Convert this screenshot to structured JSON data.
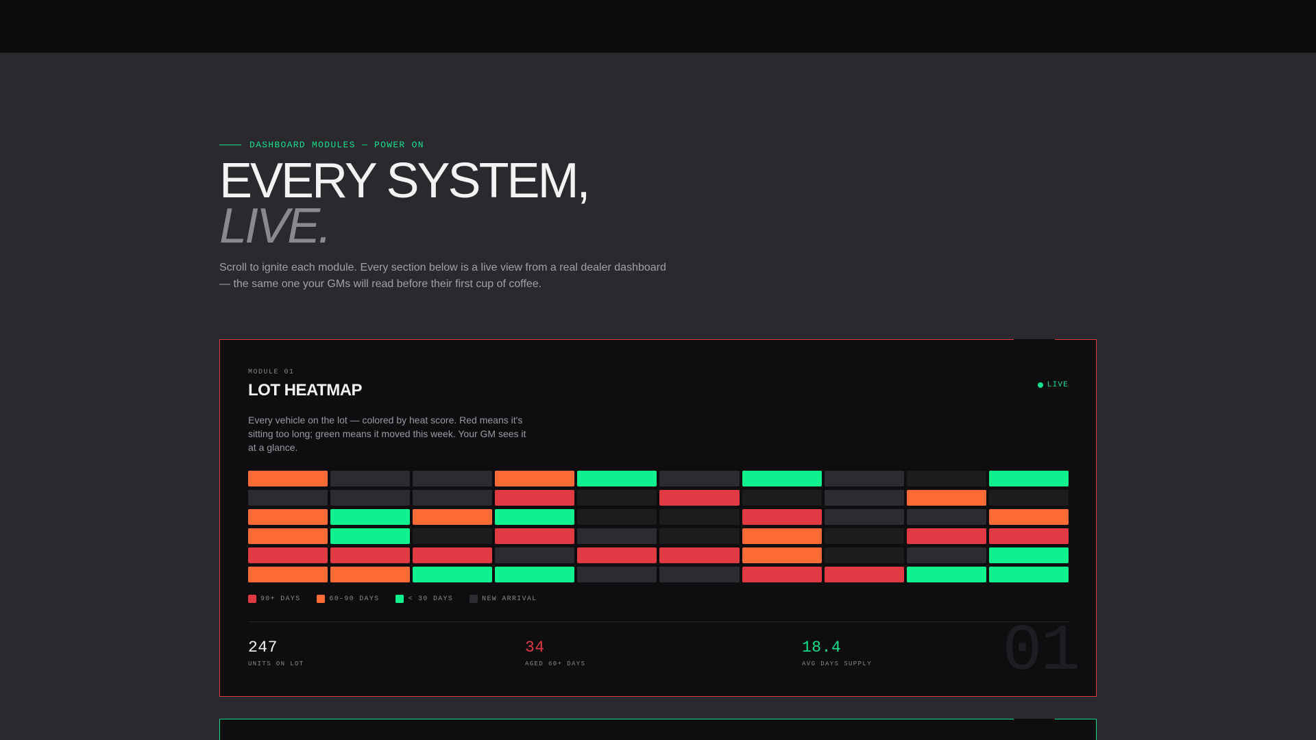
{
  "hero": {
    "eyebrow": "DASHBOARD MODULES — POWER ON",
    "title_line1": "EVERY SYSTEM,",
    "title_line2": "LIVE.",
    "lede": "Scroll to ignite each module. Every section below is a live view from a real dealer dashboard — the same one your GMs will read before their first cup of coffee."
  },
  "module1": {
    "label": "MODULE 01",
    "title": "LOT HEATMAP",
    "live_label": "LIVE",
    "description": "Every vehicle on the lot — colored by heat score. Red means it's sitting too long; green means it moved this week. Your GM sees it at a glance.",
    "heatmap": {
      "columns": 10,
      "rows": [
        [
          "orange",
          "dark",
          "dark",
          "orange",
          "green",
          "dark",
          "green",
          "dark",
          "darker",
          "green"
        ],
        [
          "dark",
          "dark",
          "dark",
          "red",
          "darker",
          "red",
          "darker",
          "dark",
          "orange",
          "darker"
        ],
        [
          "orange",
          "green",
          "orange",
          "green",
          "darker",
          "darker",
          "red",
          "dark",
          "dark",
          "orange"
        ],
        [
          "orange",
          "green",
          "darker",
          "red",
          "dark",
          "darker",
          "orange",
          "darker",
          "red",
          "red"
        ],
        [
          "red",
          "red",
          "red",
          "dark",
          "red",
          "red",
          "orange",
          "darker",
          "dark",
          "green"
        ],
        [
          "orange",
          "orange",
          "green",
          "green",
          "dark",
          "dark",
          "red",
          "red",
          "green",
          "green"
        ]
      ]
    },
    "legend": [
      {
        "label": "90+ DAYS",
        "color": "#e03a45"
      },
      {
        "label": "60–90 DAYS",
        "color": "#ff6b35"
      },
      {
        "label": "< 30 DAYS",
        "color": "#0ff08f"
      },
      {
        "label": "NEW ARRIVAL",
        "color": "#2c2c30"
      }
    ],
    "stats": [
      {
        "value": "247",
        "label": "UNITS ON LOT",
        "color": "#f3f3f3"
      },
      {
        "value": "34",
        "label": "AGED 60+ DAYS",
        "color": "#e03a45"
      },
      {
        "value": "18.4",
        "label": "AVG DAYS SUPPLY",
        "color": "#16e08b"
      }
    ],
    "big_number": "01"
  },
  "colors": {
    "accent_green": "#16e08b",
    "accent_red": "#e03a45",
    "accent_orange": "#ff6b35"
  }
}
